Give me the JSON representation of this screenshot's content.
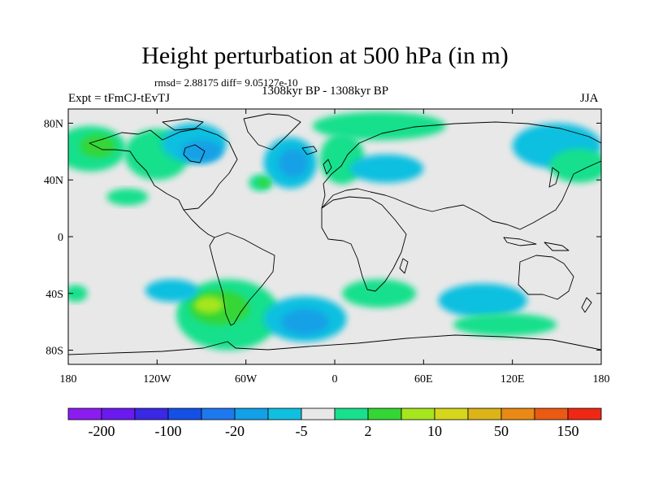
{
  "chart_data": {
    "type": "heatmap",
    "title": "Height perturbation at 500 hPa (in m)",
    "stats": "rmsd= 2.88175 diff= 9.05127e-10",
    "period": "1308kyr BP - 1308kyr BP",
    "experiment": "Expt = tFmCJ-tEvTJ",
    "season": "JJA",
    "xlim": [
      -180,
      180
    ],
    "ylim": [
      -90,
      90
    ],
    "x_ticks": [
      {
        "value": -180,
        "label": "180"
      },
      {
        "value": -120,
        "label": "120W"
      },
      {
        "value": -60,
        "label": "60W"
      },
      {
        "value": 0,
        "label": "0"
      },
      {
        "value": 60,
        "label": "60E"
      },
      {
        "value": 120,
        "label": "120E"
      },
      {
        "value": 180,
        "label": "180"
      }
    ],
    "y_ticks": [
      {
        "value": 80,
        "label": "80N"
      },
      {
        "value": 40,
        "label": "40N"
      },
      {
        "value": 0,
        "label": "0"
      },
      {
        "value": -40,
        "label": "40S"
      },
      {
        "value": -80,
        "label": "80S"
      }
    ],
    "colorbar": {
      "colors": [
        "#8c1cf0",
        "#6a1aee",
        "#3a28e4",
        "#1450e6",
        "#1e78ee",
        "#12a0e6",
        "#10c0e0",
        "#e8e8e8",
        "#18e08c",
        "#34d634",
        "#a6e61e",
        "#d6d61c",
        "#dcb418",
        "#e88a14",
        "#ea5a12",
        "#ee2814"
      ],
      "labels": [
        {
          "boundary": 1,
          "text": "-200"
        },
        {
          "boundary": 3,
          "text": "-100"
        },
        {
          "boundary": 5,
          "text": "-20"
        },
        {
          "boundary": 7,
          "text": "-5"
        },
        {
          "boundary": 9,
          "text": "2"
        },
        {
          "boundary": 11,
          "text": "10"
        },
        {
          "boundary": 13,
          "text": "50"
        },
        {
          "boundary": 15,
          "text": "150"
        }
      ]
    },
    "anomaly_regions": [
      {
        "lon": -165,
        "lat": 62,
        "rx": 24,
        "ry": 16,
        "level": 8
      },
      {
        "lon": -160,
        "lat": 64,
        "rx": 12,
        "ry": 8,
        "level": 9
      },
      {
        "lon": -120,
        "lat": 58,
        "rx": 22,
        "ry": 18,
        "level": 8
      },
      {
        "lon": -95,
        "lat": 66,
        "rx": 22,
        "ry": 14,
        "level": 6
      },
      {
        "lon": -90,
        "lat": 60,
        "rx": 14,
        "ry": 8,
        "level": 5
      },
      {
        "lon": -30,
        "lat": 52,
        "rx": 18,
        "ry": 18,
        "level": 6
      },
      {
        "lon": -28,
        "lat": 52,
        "rx": 10,
        "ry": 10,
        "level": 5
      },
      {
        "lon": -50,
        "lat": 38,
        "rx": 8,
        "ry": 6,
        "level": 8
      },
      {
        "lon": -48,
        "lat": 38,
        "rx": 4,
        "ry": 3,
        "level": 9
      },
      {
        "lon": 30,
        "lat": 78,
        "rx": 45,
        "ry": 10,
        "level": 8
      },
      {
        "lon": 5,
        "lat": 55,
        "rx": 15,
        "ry": 18,
        "level": 8
      },
      {
        "lon": 35,
        "lat": 48,
        "rx": 25,
        "ry": 10,
        "level": 6
      },
      {
        "lon": 150,
        "lat": 64,
        "rx": 30,
        "ry": 16,
        "level": 6
      },
      {
        "lon": 165,
        "lat": 50,
        "rx": 20,
        "ry": 12,
        "level": 8
      },
      {
        "lon": -140,
        "lat": 28,
        "rx": 14,
        "ry": 6,
        "level": 8
      },
      {
        "lon": -72,
        "lat": -55,
        "rx": 35,
        "ry": 25,
        "level": 8
      },
      {
        "lon": -78,
        "lat": -50,
        "rx": 20,
        "ry": 12,
        "level": 9
      },
      {
        "lon": -85,
        "lat": -48,
        "rx": 10,
        "ry": 6,
        "level": 10
      },
      {
        "lon": -110,
        "lat": -38,
        "rx": 18,
        "ry": 8,
        "level": 6
      },
      {
        "lon": -20,
        "lat": -58,
        "rx": 28,
        "ry": 16,
        "level": 6
      },
      {
        "lon": -20,
        "lat": -60,
        "rx": 16,
        "ry": 9,
        "level": 5
      },
      {
        "lon": 30,
        "lat": -40,
        "rx": 25,
        "ry": 10,
        "level": 8
      },
      {
        "lon": 100,
        "lat": -45,
        "rx": 30,
        "ry": 12,
        "level": 6
      },
      {
        "lon": 115,
        "lat": -62,
        "rx": 35,
        "ry": 8,
        "level": 8
      },
      {
        "lon": -175,
        "lat": -40,
        "rx": 8,
        "ry": 6,
        "level": 8
      }
    ]
  }
}
